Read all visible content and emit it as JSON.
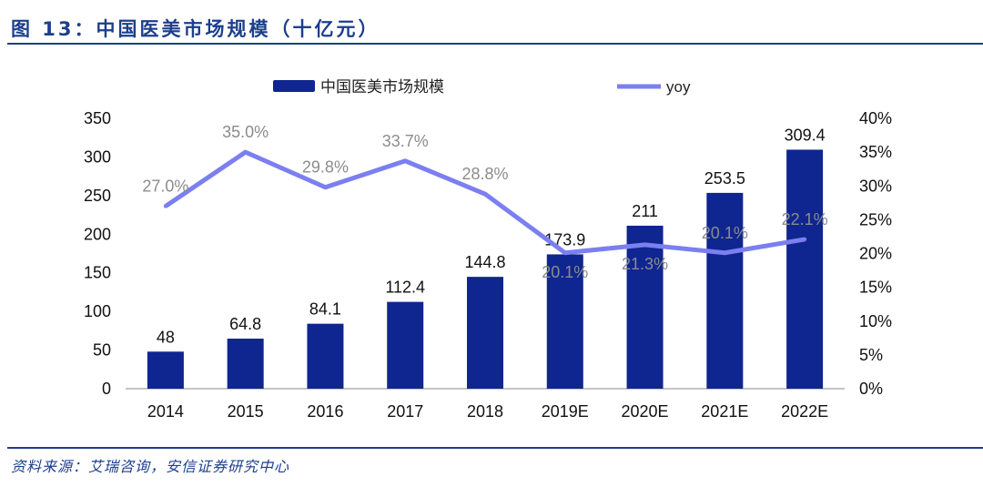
{
  "title": "图 13：中国医美市场规模（十亿元）",
  "source": "资料来源：艾瑞咨询，安信证券研究中心",
  "colors": {
    "bar": "#0f2590",
    "line": "#7b7ff0",
    "title": "#1c3f8c",
    "yoy_label": "#8c8c8c"
  },
  "chart_data": {
    "type": "bar+line",
    "categories": [
      "2014",
      "2015",
      "2016",
      "2017",
      "2018",
      "2019E",
      "2020E",
      "2021E",
      "2022E"
    ],
    "series": [
      {
        "name": "中国医美市场规模",
        "type": "bar",
        "axis": "left",
        "values": [
          48,
          64.8,
          84.1,
          112.4,
          144.8,
          173.9,
          211,
          253.5,
          309.4
        ],
        "labels": [
          "48",
          "64.8",
          "84.1",
          "112.4",
          "144.8",
          "173.9",
          "211",
          "253.5",
          "309.4"
        ]
      },
      {
        "name": "yoy",
        "type": "line",
        "axis": "right",
        "values": [
          27.0,
          35.0,
          29.8,
          33.7,
          28.8,
          20.1,
          21.3,
          20.1,
          22.1
        ],
        "labels": [
          "27.0%",
          "35.0%",
          "29.8%",
          "33.7%",
          "28.8%",
          "20.1%",
          "21.3%",
          "20.1%",
          "22.1%"
        ]
      }
    ],
    "y_left": {
      "range": [
        0,
        350
      ],
      "ticks": [
        "0",
        "50",
        "100",
        "150",
        "200",
        "250",
        "300",
        "350"
      ]
    },
    "y_right": {
      "range": [
        0,
        40
      ],
      "ticks": [
        "0%",
        "5%",
        "10%",
        "15%",
        "20%",
        "25%",
        "30%",
        "35%",
        "40%"
      ]
    },
    "grid": false,
    "legend": "top"
  }
}
